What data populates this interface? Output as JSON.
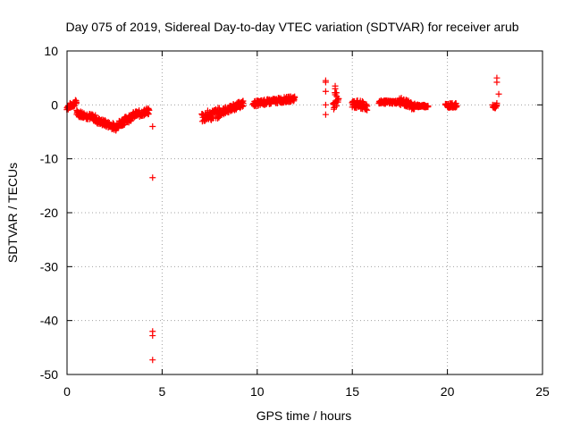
{
  "chart_data": {
    "type": "scatter",
    "title": "Day 075 of 2019, Sidereal Day-to-day VTEC variation (SDTVAR) for receiver arub",
    "xlabel": "GPS time / hours",
    "ylabel": "SDTVAR / TECUs",
    "xlim": [
      0,
      25
    ],
    "ylim": [
      -50,
      10
    ],
    "xticks": [
      0,
      5,
      10,
      15,
      20,
      25
    ],
    "yticks": [
      -50,
      -40,
      -30,
      -20,
      -10,
      0,
      10
    ],
    "xtick_labels": [
      "0",
      "5",
      "10",
      "15",
      "20",
      "25"
    ],
    "ytick_labels": [
      "-50",
      "-40",
      "-30",
      "-20",
      "-10",
      "0",
      "10"
    ],
    "grid": true,
    "marker": "+",
    "color": "#ff0000",
    "series": [
      {
        "name": "arub",
        "bands": [
          {
            "x0": 0.0,
            "x1": 0.5,
            "y0": -0.5,
            "y1": 0.5,
            "spread": 1.0
          },
          {
            "x0": 0.5,
            "x1": 1.5,
            "y0": -1.5,
            "y1": -2.5,
            "spread": 1.2
          },
          {
            "x0": 1.5,
            "x1": 2.6,
            "y0": -2.8,
            "y1": -4.2,
            "spread": 1.2
          },
          {
            "x0": 2.6,
            "x1": 3.4,
            "y0": -3.8,
            "y1": -2.2,
            "spread": 1.4
          },
          {
            "x0": 3.4,
            "x1": 4.3,
            "y0": -2.0,
            "y1": -1.2,
            "spread": 1.2
          },
          {
            "x0": 7.1,
            "x1": 8.0,
            "y0": -2.3,
            "y1": -1.5,
            "spread": 2.0
          },
          {
            "x0": 8.0,
            "x1": 9.3,
            "y0": -1.5,
            "y1": 0.3,
            "spread": 1.2
          },
          {
            "x0": 9.8,
            "x1": 12.0,
            "y0": 0.2,
            "y1": 1.2,
            "spread": 1.0
          },
          {
            "x0": 14.0,
            "x1": 14.3,
            "y0": 0.5,
            "y1": 1.5,
            "spread": 3.0
          },
          {
            "x0": 15.0,
            "x1": 15.8,
            "y0": 0.2,
            "y1": -0.3,
            "spread": 1.6
          },
          {
            "x0": 16.4,
            "x1": 17.5,
            "y0": 0.5,
            "y1": 0.5,
            "spread": 0.6
          },
          {
            "x0": 17.5,
            "x1": 18.3,
            "y0": 0.7,
            "y1": -0.3,
            "spread": 1.4
          },
          {
            "x0": 18.3,
            "x1": 19.0,
            "y0": -0.2,
            "y1": -0.2,
            "spread": 0.5
          },
          {
            "x0": 19.9,
            "x1": 20.5,
            "y0": -0.1,
            "y1": -0.1,
            "spread": 0.8
          },
          {
            "x0": 22.4,
            "x1": 22.6,
            "y0": -0.3,
            "y1": -0.3,
            "spread": 0.6
          }
        ],
        "points": [
          {
            "x": 4.5,
            "y": -4.0
          },
          {
            "x": 4.5,
            "y": -13.5
          },
          {
            "x": 4.5,
            "y": -42.0
          },
          {
            "x": 4.5,
            "y": -42.8
          },
          {
            "x": 4.5,
            "y": -47.3
          },
          {
            "x": 13.6,
            "y": 4.5
          },
          {
            "x": 13.6,
            "y": 4.2
          },
          {
            "x": 13.6,
            "y": 2.5
          },
          {
            "x": 13.6,
            "y": 0.0
          },
          {
            "x": 13.6,
            "y": -1.8
          },
          {
            "x": 14.1,
            "y": 3.5
          },
          {
            "x": 14.1,
            "y": 3.0
          },
          {
            "x": 22.6,
            "y": 5.0
          },
          {
            "x": 22.6,
            "y": 4.2
          },
          {
            "x": 22.7,
            "y": 2.0
          },
          {
            "x": 22.6,
            "y": 0.3
          }
        ]
      }
    ]
  }
}
